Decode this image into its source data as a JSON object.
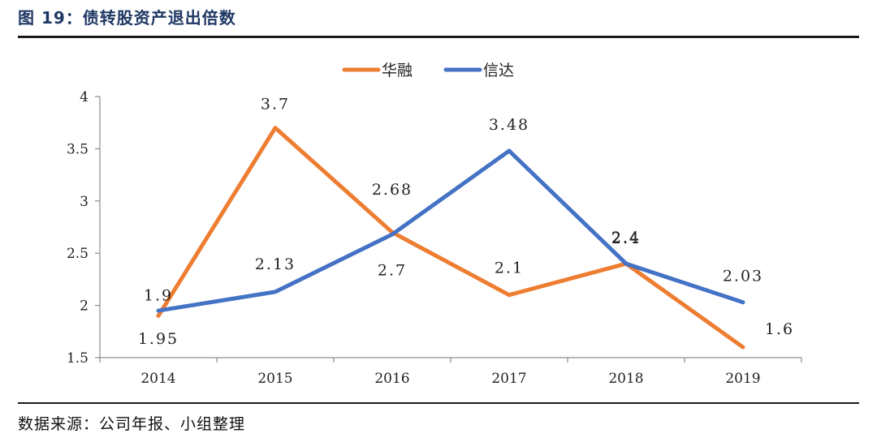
{
  "title": "图 19：债转股资产退出倍数",
  "source": "数据来源：公司年报、小组整理",
  "colors": {
    "huarong": "#ED7D31",
    "xinda": "#4472C4"
  },
  "chart_data": {
    "type": "line",
    "title": "",
    "xlabel": "",
    "ylabel": "",
    "categories": [
      "2014",
      "2015",
      "2016",
      "2017",
      "2018",
      "2019"
    ],
    "ylim": [
      1.5,
      4
    ],
    "yticks": [
      "1.5",
      "2",
      "2.5",
      "3",
      "3.5",
      "4"
    ],
    "legend_position": "top",
    "grid": false,
    "series": [
      {
        "name": "华融",
        "color": "#ED7D31",
        "values": [
          1.9,
          3.7,
          2.7,
          2.1,
          2.4,
          1.6
        ],
        "labels": [
          "1.9",
          "3.7",
          "2.7",
          "2.1",
          "2.4",
          "1.6"
        ]
      },
      {
        "name": "信达",
        "color": "#4472C4",
        "values": [
          1.95,
          2.13,
          2.68,
          3.48,
          2.4,
          2.03
        ],
        "labels": [
          "1.95",
          "2.13",
          "2.68",
          "3.48",
          "2.4",
          "2.03"
        ]
      }
    ]
  }
}
